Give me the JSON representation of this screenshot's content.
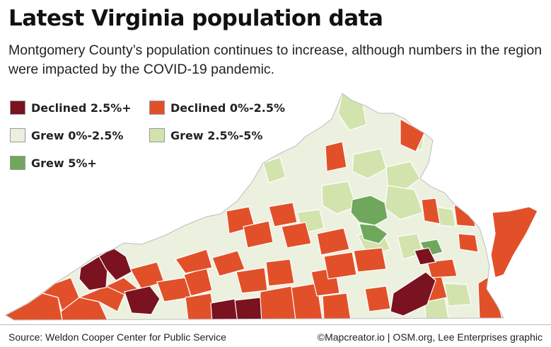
{
  "header": {
    "title": "Latest Virginia population data",
    "subtitle": "Montgomery County’s population continues to increase, although numbers in the region were impacted by the COVID-19 pandemic."
  },
  "legend": [
    {
      "label": "Declined 2.5%+",
      "color": "#7a1220"
    },
    {
      "label": "Declined 0%-2.5%",
      "color": "#e2502a"
    },
    {
      "label": "Grew 0%-2.5%",
      "color": "#ecf0df"
    },
    {
      "label": "Grew 2.5%-5%",
      "color": "#d3e3ad"
    },
    {
      "label": "Grew 5%+",
      "color": "#6fa85c"
    }
  ],
  "footer": {
    "source": "Source: Weldon Cooper Center for Public Service",
    "credit": "©Mapcreator.io | OSM.org, Lee Enterprises graphic"
  }
}
